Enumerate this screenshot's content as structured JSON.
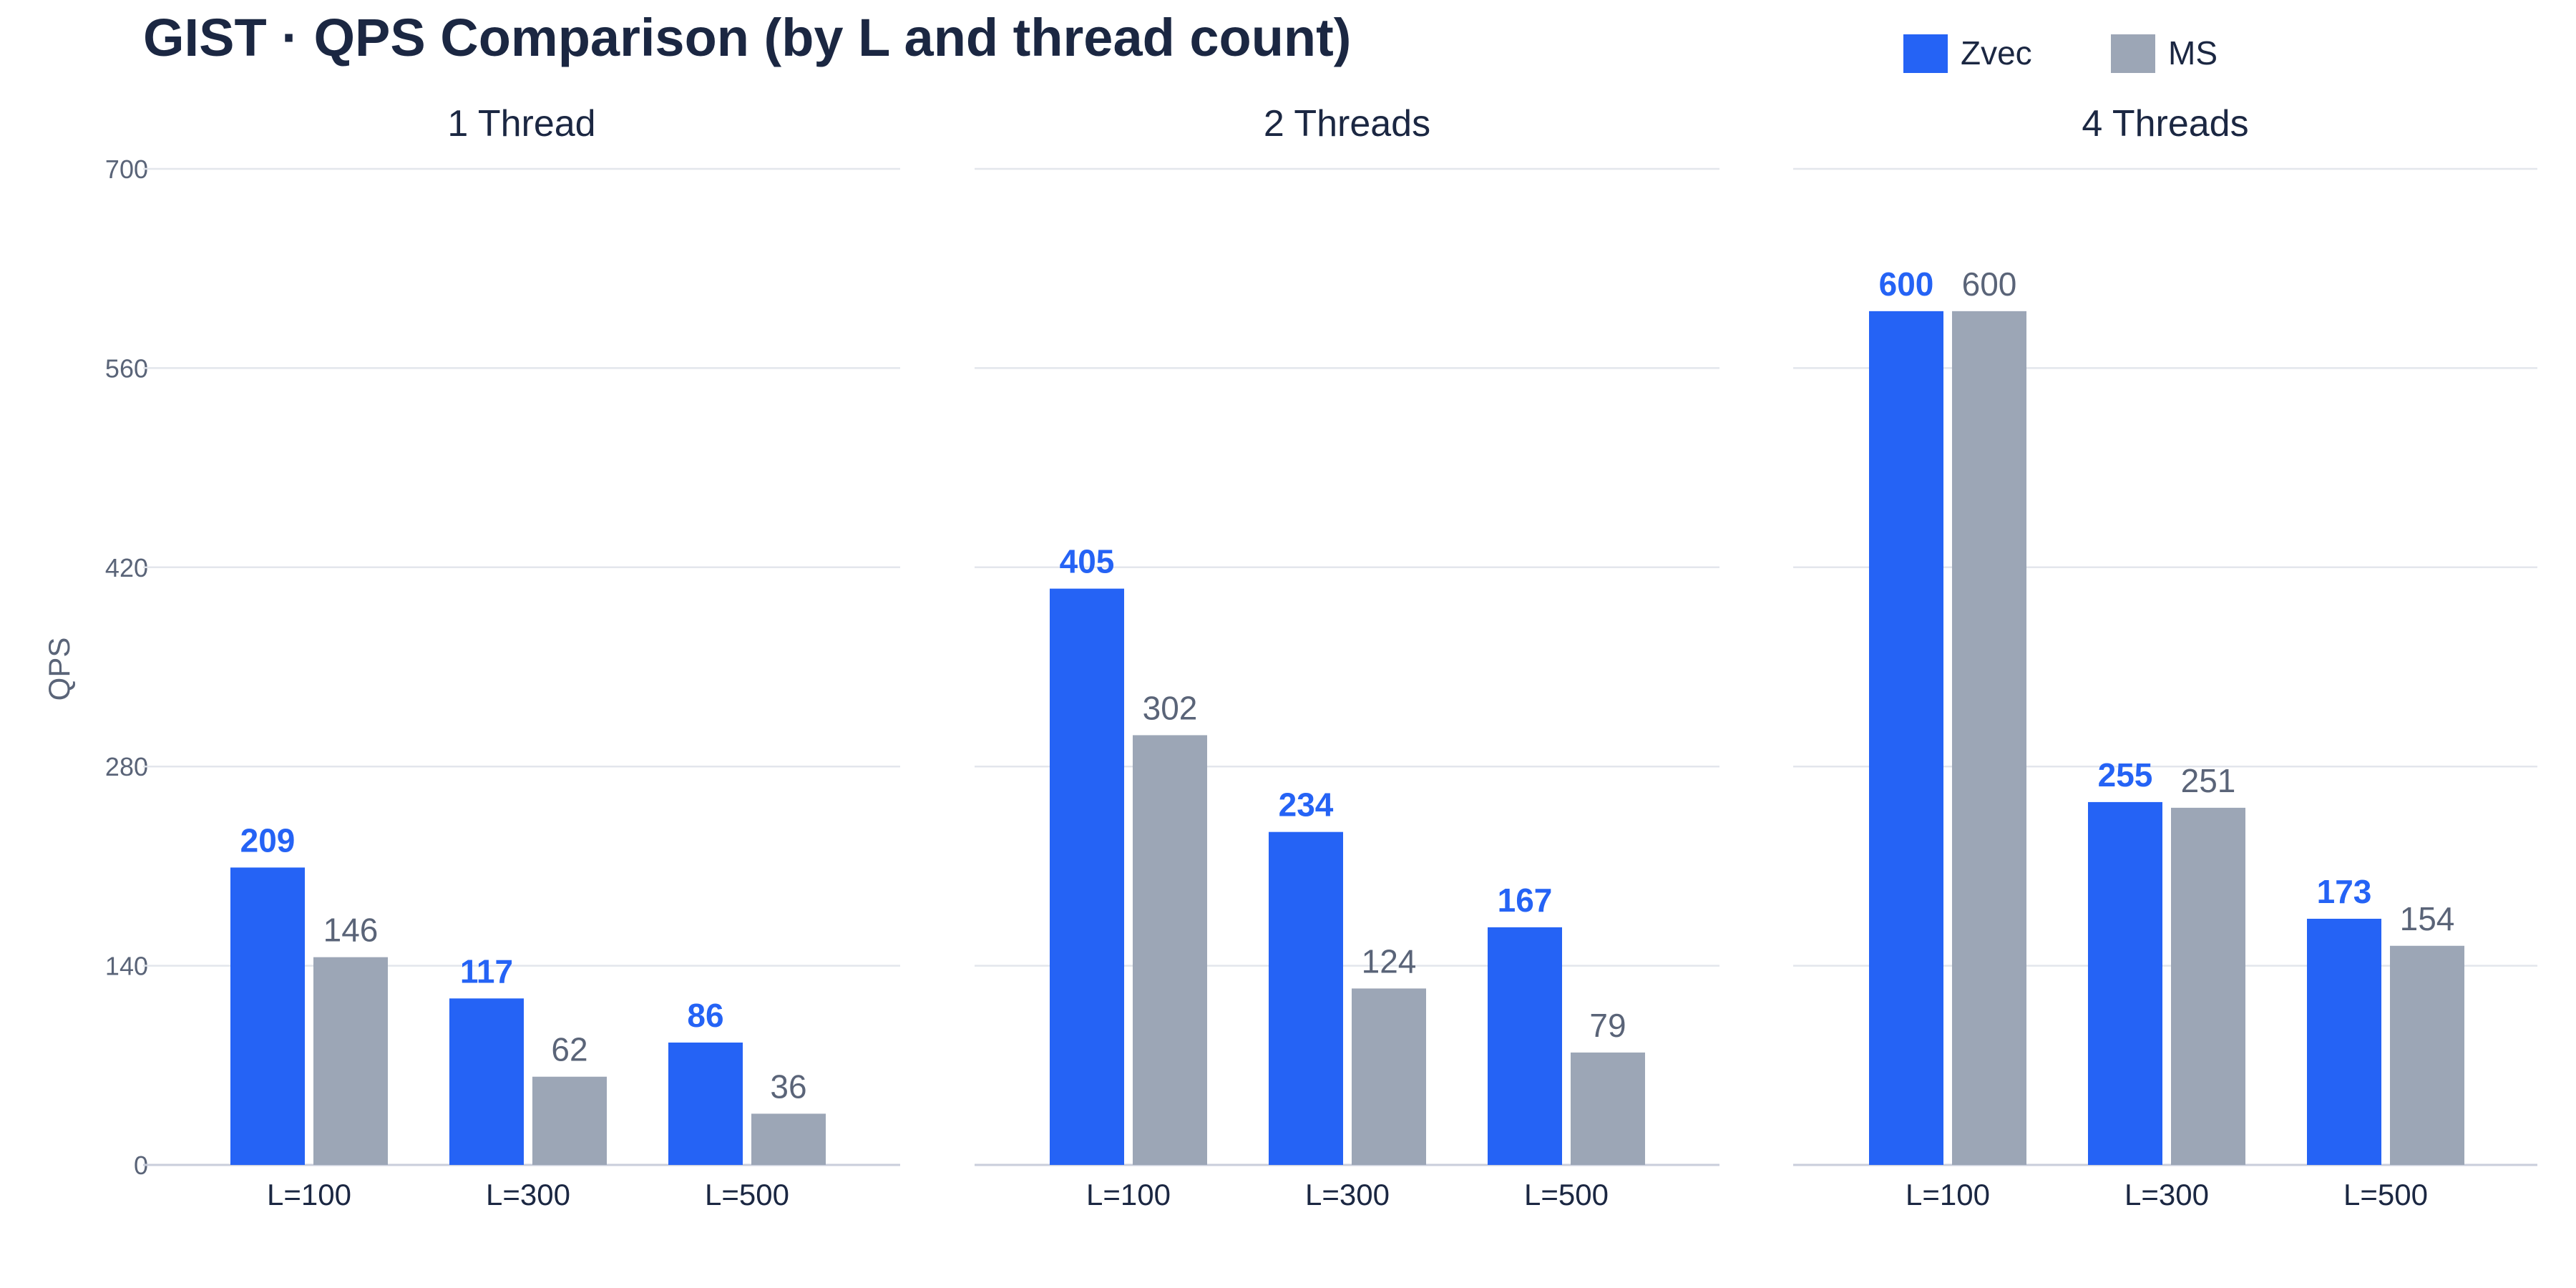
{
  "chart_data": {
    "type": "bar",
    "title": "GIST · QPS Comparison (by L and thread count)",
    "ylabel": "QPS",
    "ylim": [
      0,
      700
    ],
    "yticks": [
      0,
      140,
      280,
      420,
      560,
      700
    ],
    "grid": true,
    "legend_position": "top-right",
    "categories": [
      "L=100",
      "L=300",
      "L=500"
    ],
    "series_colors": {
      "Zvec": "#2563f5",
      "MS": "#9ca6b6"
    },
    "label_colors": {
      "Zvec": "#2563f5",
      "MS": "#5a6478"
    },
    "legend": [
      {
        "name": "Zvec",
        "color": "#2563f5"
      },
      {
        "name": "MS",
        "color": "#9ca6b6"
      }
    ],
    "panels": [
      {
        "title": "1 Thread",
        "series": [
          {
            "name": "Zvec",
            "values": [
              209,
              117,
              86
            ]
          },
          {
            "name": "MS",
            "values": [
              146,
              62,
              36
            ]
          }
        ]
      },
      {
        "title": "2 Threads",
        "series": [
          {
            "name": "Zvec",
            "values": [
              405,
              234,
              167
            ]
          },
          {
            "name": "MS",
            "values": [
              302,
              124,
              79
            ]
          }
        ]
      },
      {
        "title": "4 Threads",
        "series": [
          {
            "name": "Zvec",
            "values": [
              600,
              255,
              173
            ]
          },
          {
            "name": "MS",
            "values": [
              600,
              251,
              154
            ]
          }
        ]
      }
    ]
  }
}
